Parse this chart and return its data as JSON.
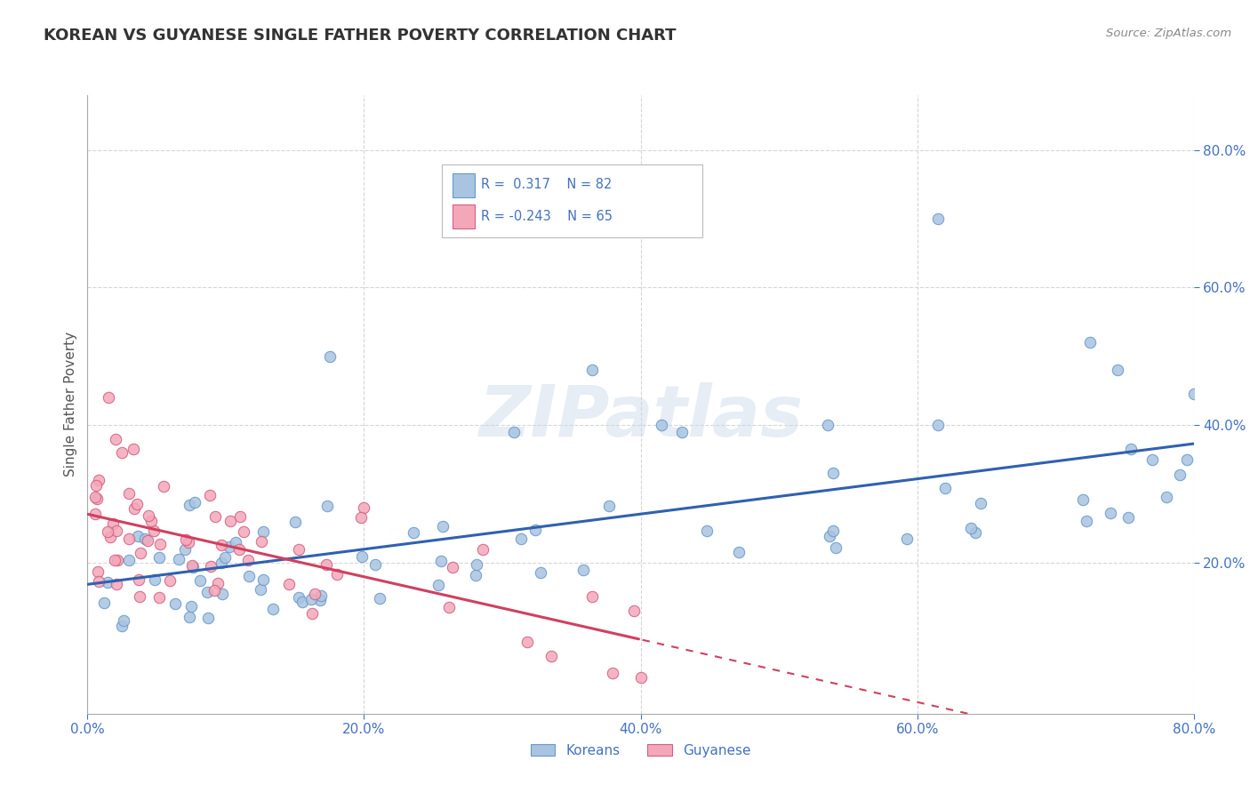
{
  "title": "KOREAN VS GUYANESE SINGLE FATHER POVERTY CORRELATION CHART",
  "source": "Source: ZipAtlas.com",
  "ylabel": "Single Father Poverty",
  "xlim": [
    0.0,
    0.8
  ],
  "ylim": [
    -0.02,
    0.88
  ],
  "xtick_labels": [
    "0.0%",
    "20.0%",
    "40.0%",
    "60.0%",
    "80.0%"
  ],
  "xtick_vals": [
    0.0,
    0.2,
    0.4,
    0.6,
    0.8
  ],
  "ytick_labels": [
    "20.0%",
    "40.0%",
    "60.0%",
    "80.0%"
  ],
  "ytick_vals": [
    0.2,
    0.4,
    0.6,
    0.8
  ],
  "korean_color_face": "#a8c4e0",
  "korean_color_edge": "#6699cc",
  "guyanese_color_face": "#f4a7b9",
  "guyanese_color_edge": "#d06080",
  "korean_line_color": "#3060b0",
  "guyanese_line_color": "#d04060",
  "watermark_text": "ZIPatlas",
  "background_color": "#ffffff",
  "grid_color": "#cccccc",
  "tick_color": "#4472c4",
  "title_color": "#333333",
  "source_color": "#888888",
  "legend_r_color": "#4472c4",
  "legend_n_color": "#4472c4"
}
